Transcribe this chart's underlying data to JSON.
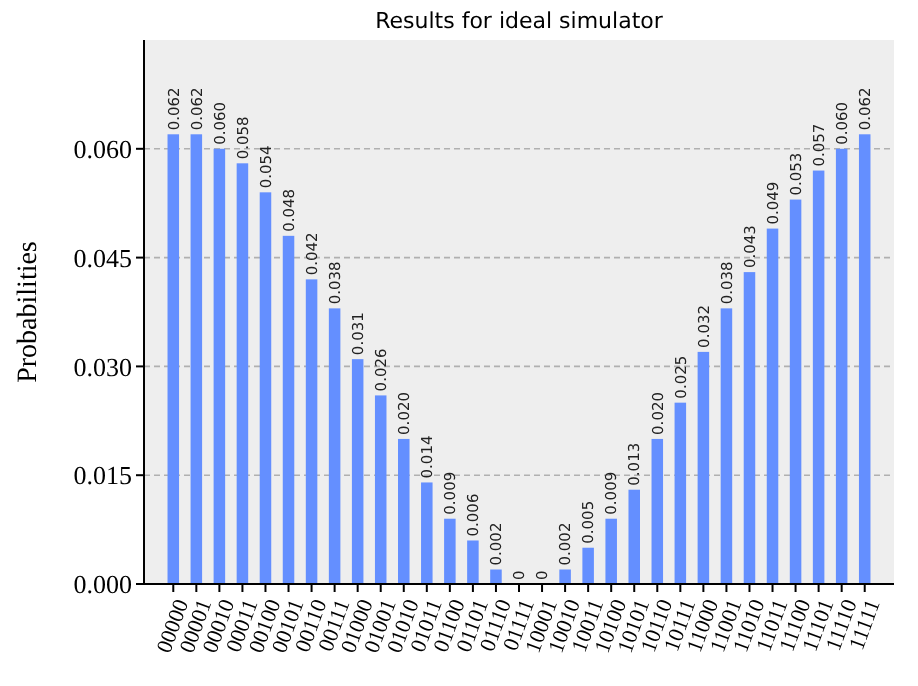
{
  "chart_data": {
    "type": "bar",
    "title": "Results for ideal simulator",
    "ylabel": "Probabilities",
    "categories": [
      "00000",
      "00001",
      "00010",
      "00011",
      "00100",
      "00101",
      "00110",
      "00111",
      "01000",
      "01001",
      "01010",
      "01011",
      "01100",
      "01101",
      "01110",
      "01111",
      "10001",
      "10010",
      "10011",
      "10100",
      "10101",
      "10110",
      "10111",
      "11000",
      "11001",
      "11010",
      "11011",
      "11100",
      "11101",
      "11110",
      "11111"
    ],
    "values": [
      0.062,
      0.062,
      0.06,
      0.058,
      0.054,
      0.048,
      0.042,
      0.038,
      0.031,
      0.026,
      0.02,
      0.014,
      0.009,
      0.006,
      0.002,
      0,
      0,
      0.002,
      0.005,
      0.009,
      0.013,
      0.02,
      0.025,
      0.032,
      0.038,
      0.043,
      0.049,
      0.053,
      0.057,
      0.06,
      0.062
    ],
    "value_labels": [
      "0.062",
      "0.062",
      "0.060",
      "0.058",
      "0.054",
      "0.048",
      "0.042",
      "0.038",
      "0.031",
      "0.026",
      "0.020",
      "0.014",
      "0.009",
      "0.006",
      "0.002",
      "0",
      "0",
      "0.002",
      "0.005",
      "0.009",
      "0.013",
      "0.020",
      "0.025",
      "0.032",
      "0.038",
      "0.043",
      "0.049",
      "0.053",
      "0.057",
      "0.060",
      "0.062"
    ],
    "color": "#648fff",
    "ylim": [
      0,
      0.075
    ],
    "yticks": [
      {
        "value": 0,
        "label": "0.000"
      },
      {
        "value": 0.015,
        "label": "0.015"
      },
      {
        "value": 0.03,
        "label": "0.030"
      },
      {
        "value": 0.045,
        "label": "0.045"
      },
      {
        "value": 0.06,
        "label": "0.060"
      }
    ],
    "grid": "y"
  }
}
